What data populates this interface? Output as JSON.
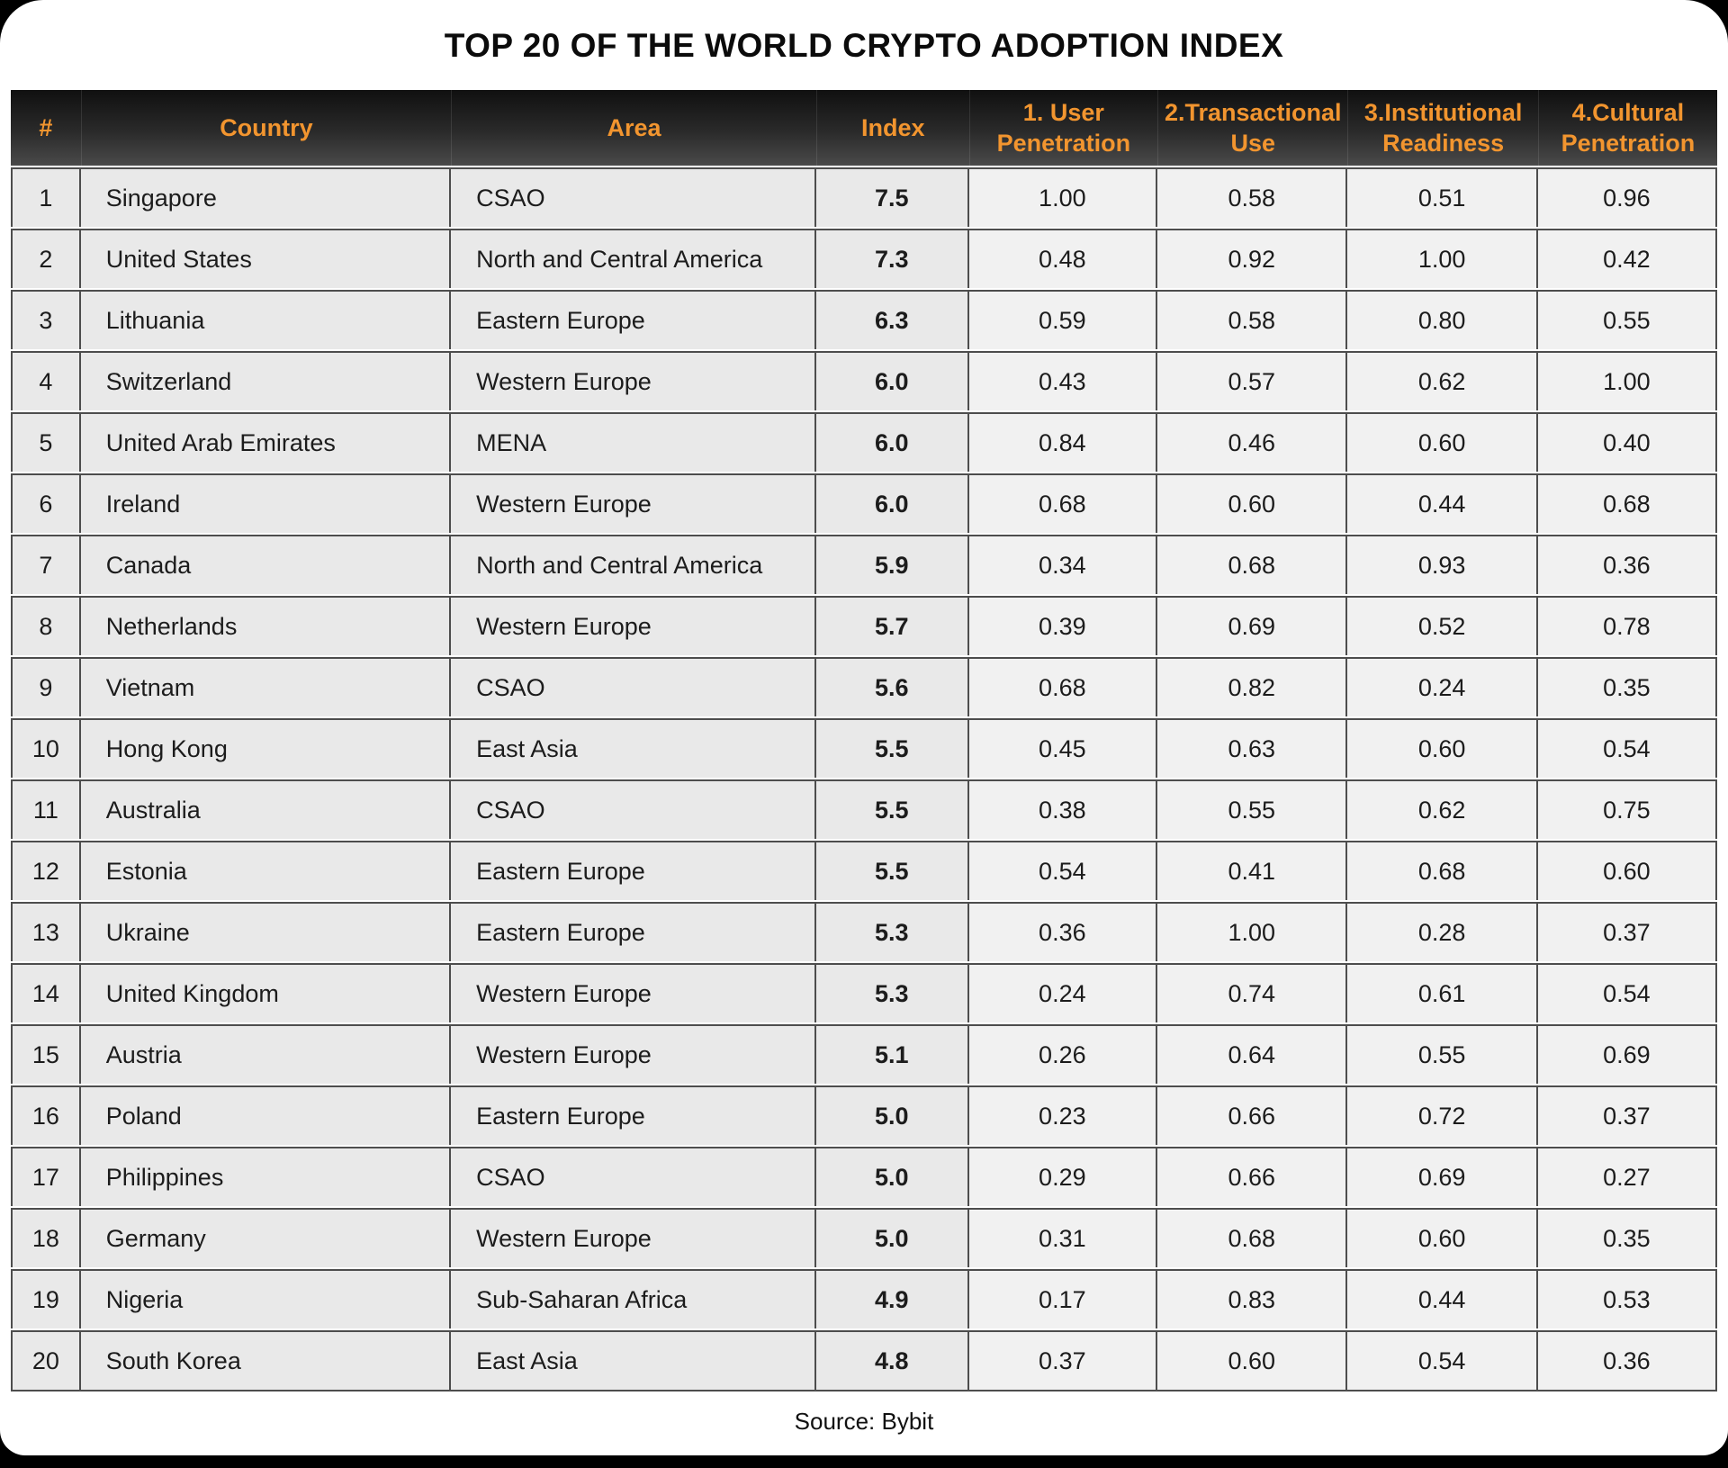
{
  "page": {
    "title": "TOP 20 OF THE WORLD CRYPTO ADOPTION INDEX",
    "source": "Source: Bybit"
  },
  "colors": {
    "page_background": "#000000",
    "card_background": "#FFFFFF",
    "header_text_orange": "#F2952F",
    "header_gradient_top": "#101010",
    "header_gradient_bottom": "#4A4A4A",
    "cell_background": "#E9E9E9",
    "metric_cell_background": "#F1F1F1",
    "cell_border": "#4D4D4D",
    "body_text": "#1C1C1C"
  },
  "chart_data": {
    "type": "table",
    "title": "TOP 20 OF THE WORLD CRYPTO ADOPTION INDEX",
    "source": "Source: Bybit",
    "columns": [
      "#",
      "Country",
      "Area",
      "Index",
      "1. User Penetration",
      "2.Transactional Use",
      "3.Institutional Readiness",
      "4.Cultural Penetration"
    ],
    "rows": [
      [
        "1",
        "Singapore",
        "CSAO",
        "7.5",
        "1.00",
        "0.58",
        "0.51",
        "0.96"
      ],
      [
        "2",
        "United States",
        "North and Central America",
        "7.3",
        "0.48",
        "0.92",
        "1.00",
        "0.42"
      ],
      [
        "3",
        "Lithuania",
        "Eastern Europe",
        "6.3",
        "0.59",
        "0.58",
        "0.80",
        "0.55"
      ],
      [
        "4",
        "Switzerland",
        "Western Europe",
        "6.0",
        "0.43",
        "0.57",
        "0.62",
        "1.00"
      ],
      [
        "5",
        "United Arab Emirates",
        "MENA",
        "6.0",
        "0.84",
        "0.46",
        "0.60",
        "0.40"
      ],
      [
        "6",
        "Ireland",
        "Western Europe",
        "6.0",
        "0.68",
        "0.60",
        "0.44",
        "0.68"
      ],
      [
        "7",
        "Canada",
        "North and Central America",
        "5.9",
        "0.34",
        "0.68",
        "0.93",
        "0.36"
      ],
      [
        "8",
        "Netherlands",
        "Western Europe",
        "5.7",
        "0.39",
        "0.69",
        "0.52",
        "0.78"
      ],
      [
        "9",
        "Vietnam",
        "CSAO",
        "5.6",
        "0.68",
        "0.82",
        "0.24",
        "0.35"
      ],
      [
        "10",
        "Hong Kong",
        "East Asia",
        "5.5",
        "0.45",
        "0.63",
        "0.60",
        "0.54"
      ],
      [
        "11",
        "Australia",
        "CSAO",
        "5.5",
        "0.38",
        "0.55",
        "0.62",
        "0.75"
      ],
      [
        "12",
        "Estonia",
        "Eastern Europe",
        "5.5",
        "0.54",
        "0.41",
        "0.68",
        "0.60"
      ],
      [
        "13",
        "Ukraine",
        "Eastern Europe",
        "5.3",
        "0.36",
        "1.00",
        "0.28",
        "0.37"
      ],
      [
        "14",
        "United Kingdom",
        "Western Europe",
        "5.3",
        "0.24",
        "0.74",
        "0.61",
        "0.54"
      ],
      [
        "15",
        "Austria",
        "Western Europe",
        "5.1",
        "0.26",
        "0.64",
        "0.55",
        "0.69"
      ],
      [
        "16",
        "Poland",
        "Eastern Europe",
        "5.0",
        "0.23",
        "0.66",
        "0.72",
        "0.37"
      ],
      [
        "17",
        "Philippines",
        "CSAO",
        "5.0",
        "0.29",
        "0.66",
        "0.69",
        "0.27"
      ],
      [
        "18",
        "Germany",
        "Western Europe",
        "5.0",
        "0.31",
        "0.68",
        "0.60",
        "0.35"
      ],
      [
        "19",
        "Nigeria",
        "Sub-Saharan Africa",
        "4.9",
        "0.17",
        "0.83",
        "0.44",
        "0.53"
      ],
      [
        "20",
        "South Korea",
        "East Asia",
        "4.8",
        "0.37",
        "0.60",
        "0.54",
        "0.36"
      ]
    ]
  }
}
